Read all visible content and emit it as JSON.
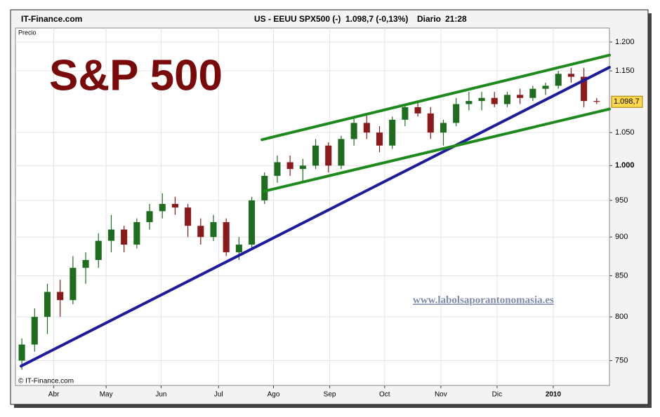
{
  "header": {
    "site": "IT-Finance.com",
    "instrument": "US - EEUU SPX500 (-)",
    "quote": "1.098,7 (-0,13%)",
    "period": "Diario",
    "time": "21:28"
  },
  "chart_data": {
    "type": "candlestick",
    "title": "S&P 500",
    "y_label": "Precio",
    "watermark": "www.labolsaporantonomasia.es",
    "copyright": "© IT-Finance.com",
    "log_scale": true,
    "grid": true,
    "up_color": "#1f6e1f",
    "down_color": "#8b1a1a",
    "last_price": {
      "value": 1098.7,
      "label": "1.098,7"
    },
    "xlim": [
      0,
      46.5
    ],
    "xticks": [
      {
        "value": 3.0,
        "label": "Abr"
      },
      {
        "value": 7.1,
        "label": "May"
      },
      {
        "value": 11.4,
        "label": "Jun"
      },
      {
        "value": 15.9,
        "label": "Jul"
      },
      {
        "value": 20.2,
        "label": "Ago"
      },
      {
        "value": 24.6,
        "label": "Sep"
      },
      {
        "value": 28.9,
        "label": "Oct"
      },
      {
        "value": 33.3,
        "label": "Nov"
      },
      {
        "value": 37.7,
        "label": "Dic"
      },
      {
        "value": 42.1,
        "label": "2010"
      }
    ],
    "ylim": [
      723,
      1225
    ],
    "yticks": [
      750,
      800,
      850,
      900,
      950,
      {
        "value": 1000,
        "label": "1.000"
      },
      {
        "value": 1050,
        "label": "1.050"
      },
      {
        "value": 1150,
        "label": "1.150"
      },
      {
        "value": 1200,
        "label": "1.200"
      }
    ],
    "x": [
      0.5,
      1.5,
      2.5,
      3.5,
      4.5,
      5.5,
      6.5,
      7.5,
      8.5,
      9.5,
      10.5,
      11.5,
      12.5,
      13.5,
      14.5,
      15.5,
      16.5,
      17.5,
      18.5,
      19.5,
      20.5,
      21.5,
      22.5,
      23.5,
      24.5,
      25.5,
      26.5,
      27.5,
      28.5,
      29.5,
      30.5,
      31.5,
      32.5,
      33.5,
      34.5,
      35.5,
      36.5,
      37.5,
      38.5,
      39.5,
      40.5,
      41.5,
      42.5,
      43.5,
      44.5,
      45.5
    ],
    "open": [
      750,
      768,
      800,
      830,
      820,
      860,
      870,
      895,
      910,
      890,
      920,
      935,
      945,
      940,
      915,
      900,
      920,
      880,
      890,
      950,
      985,
      1005,
      995,
      1000,
      1030,
      1000,
      1040,
      1065,
      1050,
      1030,
      1070,
      1090,
      1080,
      1050,
      1065,
      1095,
      1100,
      1105,
      1095,
      1110,
      1105,
      1120,
      1125,
      1145,
      1140,
      1100
    ],
    "high": [
      775,
      810,
      840,
      845,
      875,
      880,
      905,
      930,
      915,
      925,
      945,
      960,
      955,
      945,
      925,
      930,
      925,
      900,
      955,
      990,
      1015,
      1015,
      1010,
      1040,
      1035,
      1045,
      1075,
      1080,
      1060,
      1075,
      1095,
      1100,
      1090,
      1070,
      1105,
      1115,
      1115,
      1115,
      1115,
      1120,
      1125,
      1130,
      1150,
      1155,
      1155,
      1105
    ],
    "low": [
      740,
      760,
      780,
      800,
      815,
      840,
      860,
      880,
      880,
      885,
      910,
      925,
      930,
      900,
      890,
      895,
      875,
      870,
      885,
      945,
      975,
      985,
      975,
      995,
      990,
      995,
      1030,
      1040,
      1020,
      1025,
      1060,
      1075,
      1040,
      1030,
      1060,
      1085,
      1085,
      1090,
      1090,
      1095,
      1100,
      1110,
      1120,
      1130,
      1090,
      1095
    ],
    "close": [
      768,
      800,
      830,
      820,
      860,
      870,
      895,
      910,
      890,
      920,
      935,
      945,
      940,
      915,
      900,
      920,
      880,
      890,
      950,
      985,
      1005,
      995,
      1000,
      1030,
      1000,
      1040,
      1065,
      1050,
      1030,
      1070,
      1090,
      1080,
      1050,
      1065,
      1095,
      1100,
      1105,
      1095,
      1110,
      1105,
      1120,
      1125,
      1145,
      1140,
      1100,
      1098.7
    ],
    "trendlines": [
      {
        "color": "#1c1c9c",
        "x": [
          0.44,
          46.5
        ],
        "y": [
          744,
          1156
        ]
      },
      {
        "color": "#1e8a1e",
        "x": [
          19.3,
          46.5
        ],
        "y": [
          1039,
          1177
        ]
      },
      {
        "color": "#1e8a1e",
        "x": [
          19.5,
          46.5
        ],
        "y": [
          963,
          1087
        ]
      }
    ]
  }
}
